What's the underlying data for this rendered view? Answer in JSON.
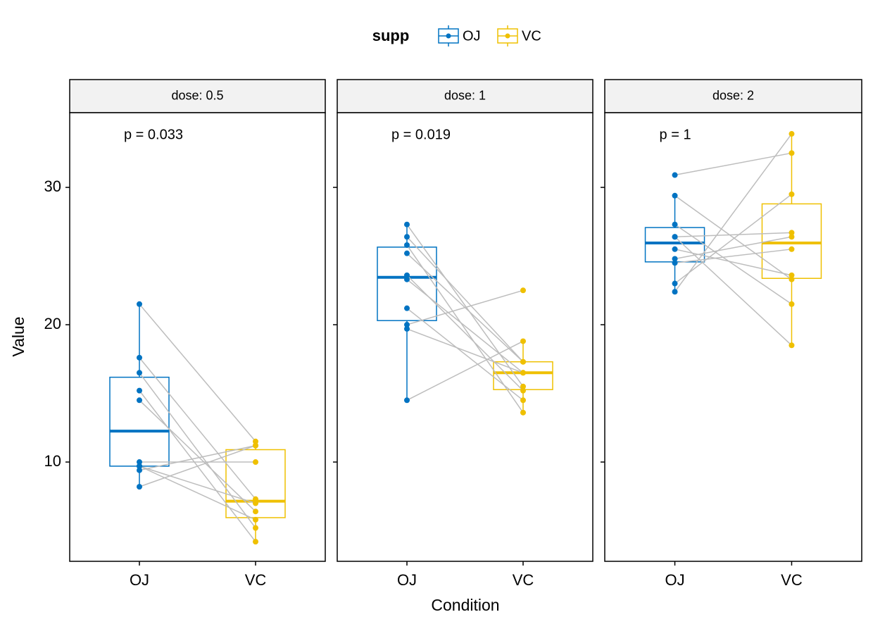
{
  "chart_data": {
    "type": "box",
    "legend_title": "supp",
    "xlabel": "Condition",
    "ylabel": "Value",
    "ylim": [
      2.77,
      35.44
    ],
    "yticks": [
      10,
      20,
      30
    ],
    "legend": "top",
    "panels": [
      {
        "strip": "dose: 0.5",
        "annotation": "p = 0.033",
        "categories": [
          "OJ",
          "VC"
        ],
        "series": [
          {
            "name": "OJ",
            "color": "#0073C2",
            "values": [
              15.2,
              21.5,
              17.6,
              9.7,
              14.5,
              10,
              8.2,
              9.4,
              16.5,
              9.7
            ],
            "box": {
              "low": 8.2,
              "q1": 9.7,
              "median": 12.25,
              "q3": 16.175,
              "high": 21.5
            }
          },
          {
            "name": "VC",
            "color": "#EFC000",
            "values": [
              4.2,
              11.5,
              7.3,
              5.8,
              6.4,
              10,
              11.2,
              11.2,
              5.2,
              7
            ],
            "box": {
              "low": 4.2,
              "q1": 5.95,
              "median": 7.15,
              "q3": 10.9,
              "high": 11.5
            }
          }
        ]
      },
      {
        "strip": "dose: 1",
        "annotation": "p = 0.019",
        "categories": [
          "OJ",
          "VC"
        ],
        "series": [
          {
            "name": "OJ",
            "color": "#0073C2",
            "values": [
              19.7,
              23.3,
              23.6,
              26.4,
              20,
              25.2,
              25.8,
              21.2,
              14.5,
              27.3
            ],
            "box": {
              "low": 14.5,
              "q1": 20.3,
              "median": 23.45,
              "q3": 25.65,
              "high": 27.3
            }
          },
          {
            "name": "VC",
            "color": "#EFC000",
            "values": [
              16.5,
              16.5,
              15.2,
              17.3,
              22.5,
              17.3,
              13.6,
              14.5,
              18.8,
              15.5
            ],
            "box": {
              "low": 13.6,
              "q1": 15.275,
              "median": 16.5,
              "q3": 17.3,
              "high": 18.8
            }
          }
        ]
      },
      {
        "strip": "dose: 2",
        "annotation": "p = 1",
        "categories": [
          "OJ",
          "VC"
        ],
        "series": [
          {
            "name": "OJ",
            "color": "#0073C2",
            "values": [
              25.5,
              26.4,
              22.4,
              24.5,
              24.8,
              30.9,
              26.4,
              27.3,
              29.4,
              23
            ],
            "box": {
              "low": 22.4,
              "q1": 24.575,
              "median": 25.95,
              "q3": 27.075,
              "high": 29.4
            }
          },
          {
            "name": "VC",
            "color": "#EFC000",
            "values": [
              23.6,
              18.5,
              33.9,
              25.5,
              26.4,
              32.5,
              26.7,
              21.5,
              23.3,
              29.5
            ],
            "box": {
              "low": 18.5,
              "q1": 23.375,
              "median": 25.95,
              "q3": 28.8,
              "high": 33.9
            }
          }
        ]
      }
    ]
  }
}
